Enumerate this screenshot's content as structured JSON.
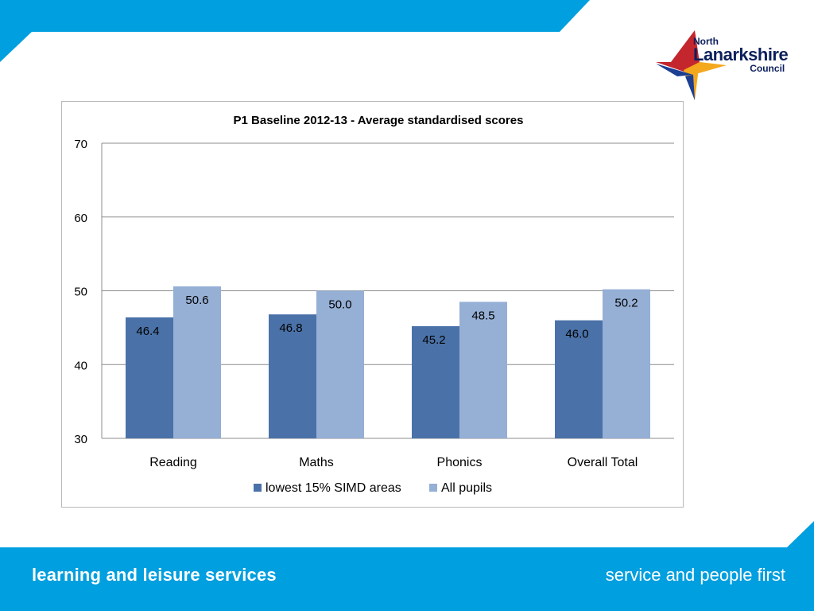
{
  "branding": {
    "logo_line1": "North",
    "logo_line2": "Lanarkshire",
    "logo_line3": "Council",
    "footer_left": "learning and leisure services",
    "footer_right": "service and people first"
  },
  "colors": {
    "band": "#009fdf",
    "series1": "#4a72a8",
    "series2": "#95afd5"
  },
  "chart_data": {
    "type": "bar",
    "title": "P1 Baseline 2012-13 - Average standardised scores",
    "categories": [
      "Reading",
      "Maths",
      "Phonics",
      "Overall Total"
    ],
    "series": [
      {
        "name": "lowest 15% SIMD areas",
        "values": [
          46.4,
          46.8,
          45.2,
          46.0
        ],
        "labels": [
          "46.4",
          "46.8",
          "45.2",
          "46.0"
        ]
      },
      {
        "name": "All pupils",
        "values": [
          50.6,
          50.0,
          48.5,
          50.2
        ],
        "labels": [
          "50.6",
          "50.0",
          "48.5",
          "50.2"
        ]
      }
    ],
    "ylim": [
      30,
      70
    ],
    "yticks": [
      "30",
      "40",
      "50",
      "60",
      "70"
    ],
    "grid": true,
    "legend_position": "bottom"
  }
}
